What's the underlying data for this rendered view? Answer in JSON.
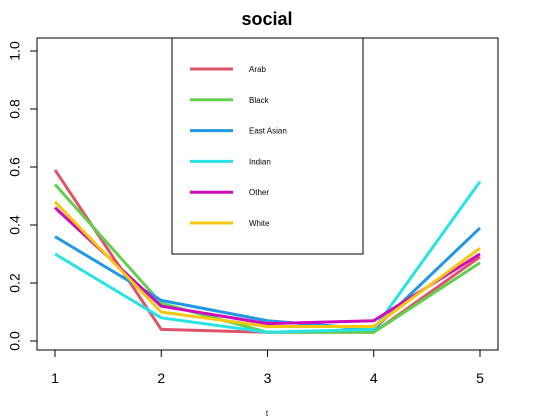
{
  "chart_data": {
    "type": "line",
    "title": "social",
    "xlabel": "t",
    "ylabel": "",
    "x": [
      1,
      2,
      3,
      4,
      5
    ],
    "xlim": [
      1,
      5
    ],
    "ylim": [
      0,
      1
    ],
    "xticks": [
      "1",
      "2",
      "3",
      "4",
      "5"
    ],
    "yticks": [
      "0.0",
      "0.2",
      "0.4",
      "0.6",
      "0.8",
      "1.0"
    ],
    "legend_position": "top-center",
    "grid": false,
    "series": [
      {
        "name": "Arab",
        "color": "#DF536B",
        "values": [
          0.59,
          0.04,
          0.03,
          0.03,
          0.29
        ]
      },
      {
        "name": "Black",
        "color": "#61D04F",
        "values": [
          0.54,
          0.13,
          0.03,
          0.03,
          0.27
        ]
      },
      {
        "name": "East Asian",
        "color": "#2297E6",
        "values": [
          0.36,
          0.14,
          0.07,
          0.04,
          0.39
        ]
      },
      {
        "name": "Indian",
        "color": "#28E2E5",
        "values": [
          0.3,
          0.08,
          0.03,
          0.04,
          0.55
        ]
      },
      {
        "name": "Other",
        "color": "#CD0BBC",
        "values": [
          0.46,
          0.12,
          0.06,
          0.07,
          0.3
        ]
      },
      {
        "name": "White",
        "color": "#F5C710",
        "values": [
          0.48,
          0.1,
          0.05,
          0.05,
          0.32
        ]
      }
    ]
  }
}
